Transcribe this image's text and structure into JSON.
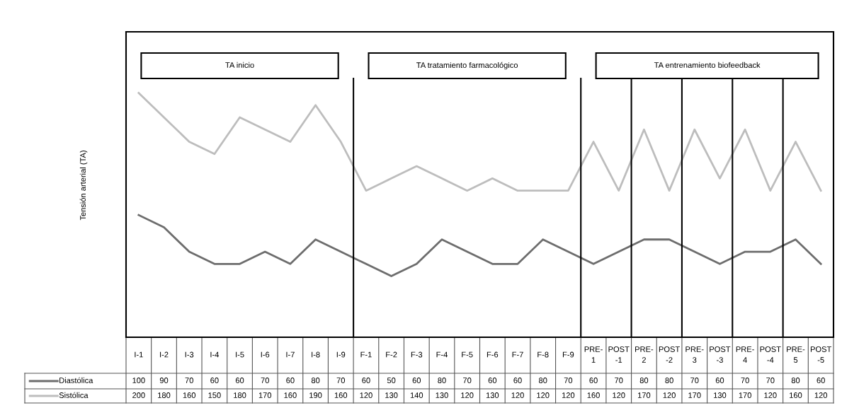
{
  "chart_data": {
    "type": "line",
    "annotations": [
      "TA inicio",
      "TA tratamiento farmacológico",
      "TA entrenamiento biofeedback",
      "Tensión arterial (TA)"
    ],
    "categories": [
      "I-1",
      "I-2",
      "I-3",
      "I-4",
      "I-5",
      "I-6",
      "I-7",
      "I-8",
      "I-9",
      "F-1",
      "F-2",
      "F-3",
      "F-4",
      "F-5",
      "F-6",
      "F-7",
      "F-8",
      "F-9",
      "PRE-\n1",
      "POST\n-1",
      "PRE-\n2",
      "POST\n-2",
      "PRE-\n3",
      "POST\n-3",
      "PRE-\n4",
      "POST\n-4",
      "PRE-\n5",
      "POST\n-5"
    ],
    "series": [
      {
        "name": "Diastólica",
        "color": "#6d6d6d",
        "values": [
          100,
          90,
          70,
          60,
          60,
          70,
          60,
          80,
          70,
          60,
          50,
          60,
          80,
          70,
          60,
          60,
          80,
          70,
          60,
          70,
          80,
          80,
          70,
          60,
          70,
          70,
          80,
          60
        ]
      },
      {
        "name": "Sistólica",
        "color": "#bdbdbd",
        "values": [
          200,
          180,
          160,
          150,
          180,
          170,
          160,
          190,
          160,
          120,
          130,
          140,
          130,
          120,
          130,
          120,
          120,
          120,
          160,
          120,
          170,
          120,
          170,
          130,
          170,
          120,
          160,
          120
        ]
      }
    ],
    "ylim": [
      0,
      250
    ],
    "tick_labels": "x",
    "marker": "none",
    "line_style": "solid",
    "data_labels": true,
    "legend": "bottom left"
  }
}
